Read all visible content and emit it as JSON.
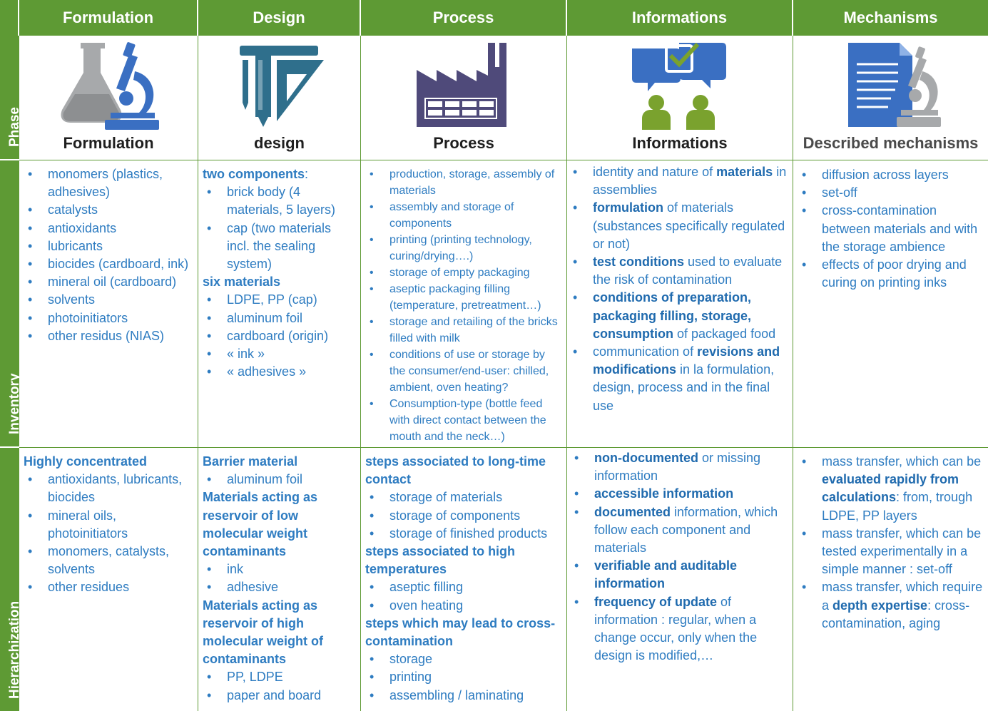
{
  "colors": {
    "header_bg": "#5e9a34",
    "text_blue": "#2e7cc1",
    "icon_blue": "#3a6fc2",
    "icon_grey": "#a7a9ab",
    "icon_teal": "#2f6f8c",
    "icon_purple": "#4f4a7a",
    "icon_green": "#7aa22e"
  },
  "headers": [
    "Formulation",
    "Design",
    "Process",
    "Informations",
    "Mechanisms"
  ],
  "row_labels": {
    "phase": "Phase",
    "inventory": "Inventory",
    "hierarchization": "Hierarchization"
  },
  "phase": [
    {
      "icon": "lab-flask-microscope-icon",
      "label": "Formulation"
    },
    {
      "icon": "pencil-ruler-triangle-icon",
      "label": "design"
    },
    {
      "icon": "factory-icon",
      "label": "Process"
    },
    {
      "icon": "chat-checkbox-people-icon",
      "label": "Informations"
    },
    {
      "icon": "document-microscope-icon",
      "label": "Described mechanisms"
    }
  ],
  "inventory": {
    "formulation": [
      "monomers (plastics, adhesives)",
      "catalysts",
      "antioxidants",
      "lubricants",
      "biocides (cardboard, ink)",
      "mineral oil (cardboard)",
      "solvents",
      "photoinitiators",
      "other residus (NIAS)"
    ],
    "design": {
      "h1": "two components",
      "h1_suffix": ":",
      "items1": [
        "brick body (4 materials, 5 layers)",
        "cap (two materials incl. the sealing system)"
      ],
      "h2": "six materials",
      "items2": [
        "LDPE, PP (cap)",
        "aluminum foil",
        "cardboard (origin)",
        "« ink »",
        "« adhesives »"
      ]
    },
    "process": [
      "production, storage, assembly of materials",
      "assembly and storage of components",
      "printing (printing technology, curing/drying….)",
      "storage of empty packaging",
      "aseptic packaging filling (temperature, pretreatment…)",
      "storage and retailing of the bricks filled with milk",
      "conditions of use or storage by the consumer/end-user: chilled, ambient, oven heating?",
      "Consumption-type (bottle feed with direct contact between the mouth and the neck…)"
    ],
    "informations": [
      {
        "a": "identity and nature of ",
        "b": "materials",
        "c": " in assemblies"
      },
      {
        "a": "",
        "b": "formulation",
        "c": " of materials (substances specifically regulated or not)"
      },
      {
        "a": "",
        "b": "test conditions",
        "c": " used to evaluate the risk of contamination"
      },
      {
        "a": "",
        "b": "conditions of preparation, packaging filling, storage, consumption",
        "c": " of packaged food"
      },
      {
        "a": "communication of ",
        "b": "revisions and modifications",
        "c": " in la formulation, design, process and in the final use"
      }
    ],
    "mechanisms": [
      "diffusion across layers",
      "set-off",
      "cross-contamination between materials and with the storage ambience",
      "effects of poor drying and curing on printing inks"
    ]
  },
  "hierarchization": {
    "formulation": {
      "h1": "Highly concentrated",
      "items": [
        "antioxidants, lubricants, biocides",
        "mineral oils, photoinitiators",
        "monomers, catalysts, solvents",
        "other residues"
      ]
    },
    "design": {
      "h1": "Barrier material",
      "items1": [
        "aluminum foil"
      ],
      "h2": "Materials acting as reservoir of low molecular weight contaminants",
      "items2": [
        "ink",
        "adhesive"
      ],
      "h3": "Materials acting as reservoir of high molecular weight of contaminants",
      "items3": [
        "PP, LDPE",
        "paper and board"
      ]
    },
    "process": {
      "h1": "steps associated to long-time contact",
      "items1": [
        "storage of materials",
        "storage of components",
        "storage of finished products"
      ],
      "h2": "steps associated to high temperatures",
      "items2": [
        "aseptic filling",
        "oven heating"
      ],
      "h3": "steps which may lead to cross-contamination",
      "items3": [
        "storage",
        "printing",
        "assembling / laminating"
      ]
    },
    "informations": [
      {
        "b": "non-documented",
        "c": " or missing information"
      },
      {
        "b": "accessible information",
        "c": ""
      },
      {
        "b": "documented",
        "c": " information, which follow each component and materials"
      },
      {
        "b": "verifiable and auditable information",
        "c": ""
      },
      {
        "b": "frequency of update",
        "c": " of information : regular, when a change occur, only when the design is modified,…"
      }
    ],
    "mechanisms": [
      {
        "a": "mass transfer, which can be ",
        "b": "evaluated rapidly from calculations",
        "c": ": from, trough LDPE, PP layers"
      },
      {
        "a": "mass transfer, which can be tested experimentally in a simple manner : set-off",
        "b": "",
        "c": ""
      },
      {
        "a": "mass transfer, which require a ",
        "b": "depth expertise",
        "c": ": cross-contamination, aging"
      }
    ]
  }
}
